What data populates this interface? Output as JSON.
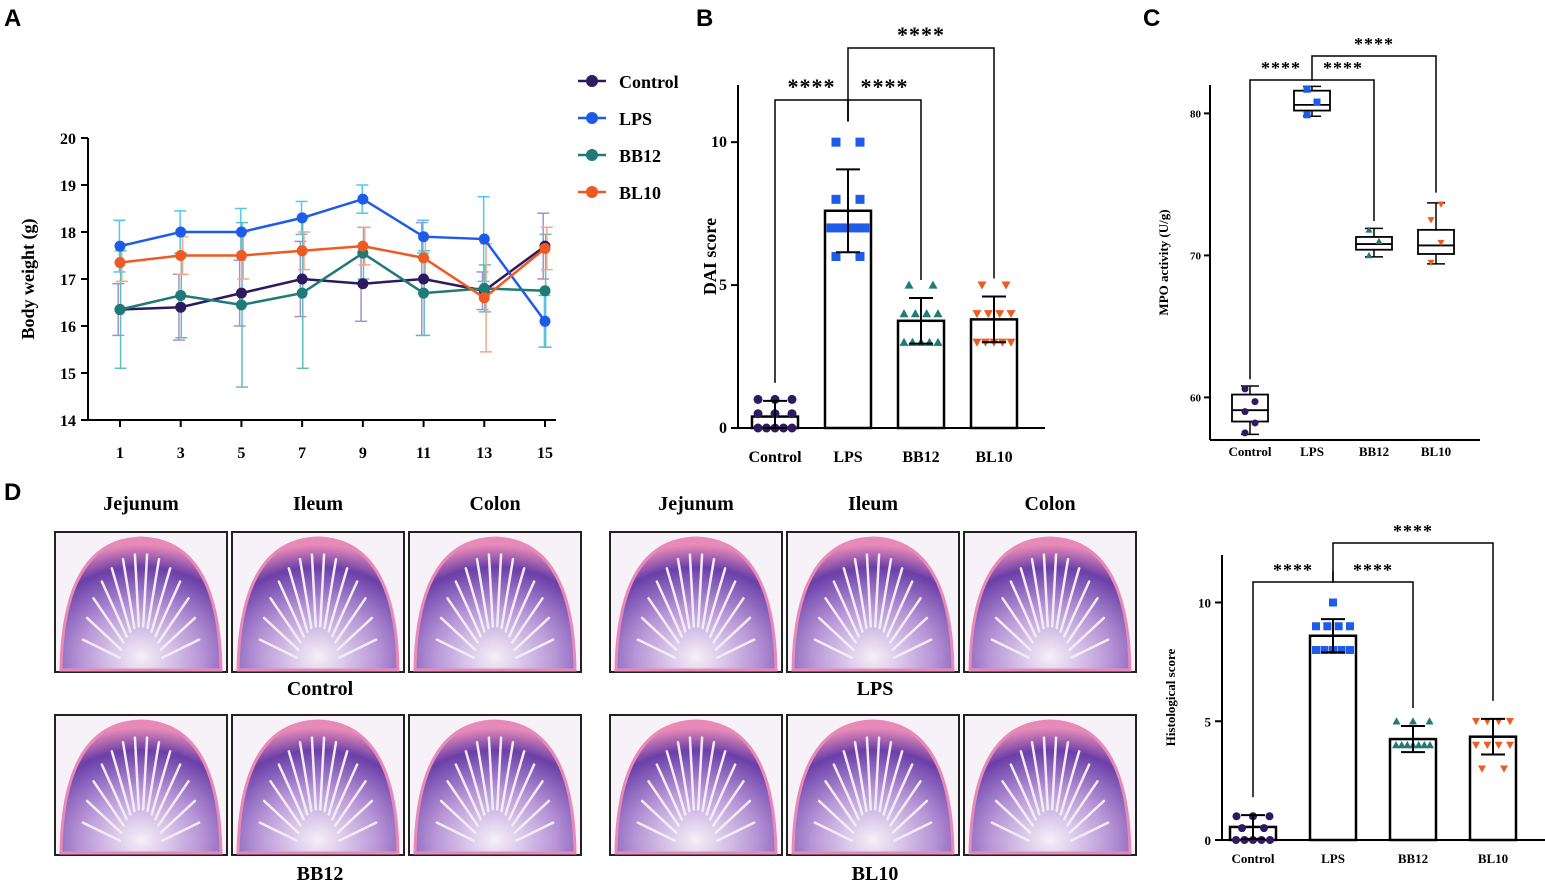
{
  "panel_labels": [
    "A",
    "B",
    "C",
    "D"
  ],
  "colors": {
    "control": "#2e1a5e",
    "lps": "#1e5be8",
    "bb12": "#1f7a78",
    "bl10": "#ee5a24",
    "err_control": "#a88fd0",
    "err_lps": "#52c8ee",
    "err_bb12": "#5fc0b8",
    "err_bl10": "#f3a48a",
    "tissue_dark": "#6a3fa8",
    "tissue_light": "#e9dcef",
    "tissue_edge": "#e88ab8"
  },
  "chart_data": [
    {
      "id": "A",
      "type": "line",
      "ylabel": "Body weight (g)",
      "xlabel": "",
      "x": [
        1,
        3,
        5,
        7,
        9,
        11,
        13,
        15
      ],
      "ylim": [
        14,
        20
      ],
      "yticks": [
        14,
        15,
        16,
        17,
        18,
        19,
        20
      ],
      "legend": [
        "Control",
        "LPS",
        "BB12",
        "BL10"
      ],
      "series": [
        {
          "name": "Control",
          "values": [
            16.35,
            16.4,
            16.7,
            17.0,
            16.9,
            17.0,
            16.75,
            17.7
          ],
          "err": [
            0.55,
            0.7,
            0.7,
            0.8,
            0.8,
            1.2,
            0.4,
            0.7
          ]
        },
        {
          "name": "LPS",
          "values": [
            17.7,
            18.0,
            18.0,
            18.3,
            18.7,
            17.9,
            17.85,
            16.1
          ],
          "err": [
            0.55,
            0.45,
            0.5,
            0.35,
            0.3,
            0.35,
            0.9,
            0.55
          ]
        },
        {
          "name": "BB12",
          "values": [
            16.35,
            16.65,
            16.45,
            16.7,
            17.55,
            16.7,
            16.8,
            16.75
          ],
          "err": [
            1.25,
            0.9,
            1.75,
            1.6,
            0.55,
            0.9,
            0.5,
            1.2
          ]
        },
        {
          "name": "BL10",
          "values": [
            17.35,
            17.5,
            17.5,
            17.6,
            17.7,
            17.45,
            16.6,
            17.65
          ],
          "err": [
            0.4,
            0.4,
            0.5,
            0.4,
            0.4,
            0.45,
            1.15,
            0.45
          ]
        }
      ]
    },
    {
      "id": "B",
      "type": "bar",
      "ylabel": "DAI score",
      "categories": [
        "Control",
        "LPS",
        "BB12",
        "BL10"
      ],
      "values": [
        0.4,
        7.6,
        3.75,
        3.8
      ],
      "err": [
        0.55,
        1.45,
        0.8,
        0.8
      ],
      "ylim": [
        0,
        12
      ],
      "yticks": [
        0,
        5,
        10
      ],
      "points": [
        [
          0,
          0,
          0,
          0,
          0,
          0.5,
          0.5,
          0.5,
          1,
          1,
          1
        ],
        [
          6,
          6,
          7,
          7,
          7,
          7,
          7,
          8,
          8,
          10,
          10
        ],
        [
          3,
          3,
          3,
          3,
          3,
          4,
          4,
          4,
          4,
          5,
          5
        ],
        [
          3,
          3,
          3,
          3,
          3,
          4,
          4,
          4,
          4,
          5,
          5
        ]
      ],
      "significance": [
        {
          "from": 1,
          "to": 0,
          "label": "****"
        },
        {
          "from": 1,
          "to": 2,
          "label": "****"
        },
        {
          "from": 1,
          "to": 3,
          "label": "****"
        }
      ]
    },
    {
      "id": "C",
      "type": "box",
      "ylabel": "MPO activity (U/g)",
      "categories": [
        "Control",
        "LPS",
        "BB12",
        "BL10"
      ],
      "ylim": [
        57,
        82
      ],
      "yticks": [
        60,
        70,
        80
      ],
      "boxes": [
        {
          "min": 57.4,
          "q1": 58.3,
          "median": 59.1,
          "q3": 60.2,
          "max": 60.8,
          "points": [
            57.5,
            58.2,
            59.0,
            59.7,
            60.6
          ]
        },
        {
          "min": 79.8,
          "q1": 80.2,
          "median": 80.6,
          "q3": 81.6,
          "max": 81.9,
          "points": [
            79.9,
            80.8,
            81.7
          ]
        },
        {
          "min": 69.9,
          "q1": 70.4,
          "median": 70.8,
          "q3": 71.3,
          "max": 71.9,
          "points": [
            70.0,
            71.0,
            71.8
          ]
        },
        {
          "min": 69.4,
          "q1": 70.1,
          "median": 70.7,
          "q3": 71.8,
          "max": 73.7,
          "points": [
            69.5,
            70.9,
            72.5,
            73.6
          ]
        }
      ],
      "significance": [
        {
          "from": 1,
          "to": 0,
          "label": "****"
        },
        {
          "from": 1,
          "to": 2,
          "label": "****"
        },
        {
          "from": 1,
          "to": 3,
          "label": "****"
        }
      ]
    },
    {
      "id": "D",
      "type": "bar",
      "ylabel": "Histological score",
      "categories": [
        "Control",
        "LPS",
        "BB12",
        "BL10"
      ],
      "values": [
        0.55,
        8.6,
        4.25,
        4.35
      ],
      "err": [
        0.5,
        0.7,
        0.55,
        0.75
      ],
      "ylim": [
        0,
        12
      ],
      "yticks": [
        0,
        5,
        10
      ],
      "points": [
        [
          0,
          0,
          0,
          0,
          0,
          0.5,
          0.5,
          1,
          1,
          1
        ],
        [
          8,
          8,
          8,
          8,
          8,
          9,
          9,
          9,
          9,
          10
        ],
        [
          4,
          4,
          4,
          4,
          4,
          4,
          4,
          5,
          5,
          5
        ],
        [
          3,
          3,
          4,
          4,
          4,
          4,
          5,
          5,
          5,
          5
        ]
      ],
      "significance": [
        {
          "from": 1,
          "to": 0,
          "label": "****"
        },
        {
          "from": 1,
          "to": 2,
          "label": "****"
        },
        {
          "from": 1,
          "to": 3,
          "label": "****"
        }
      ]
    }
  ],
  "histology": {
    "columns": [
      "Jejunum",
      "Ileum",
      "Colon"
    ],
    "groups": [
      "Control",
      "LPS",
      "BB12",
      "BL10"
    ]
  }
}
